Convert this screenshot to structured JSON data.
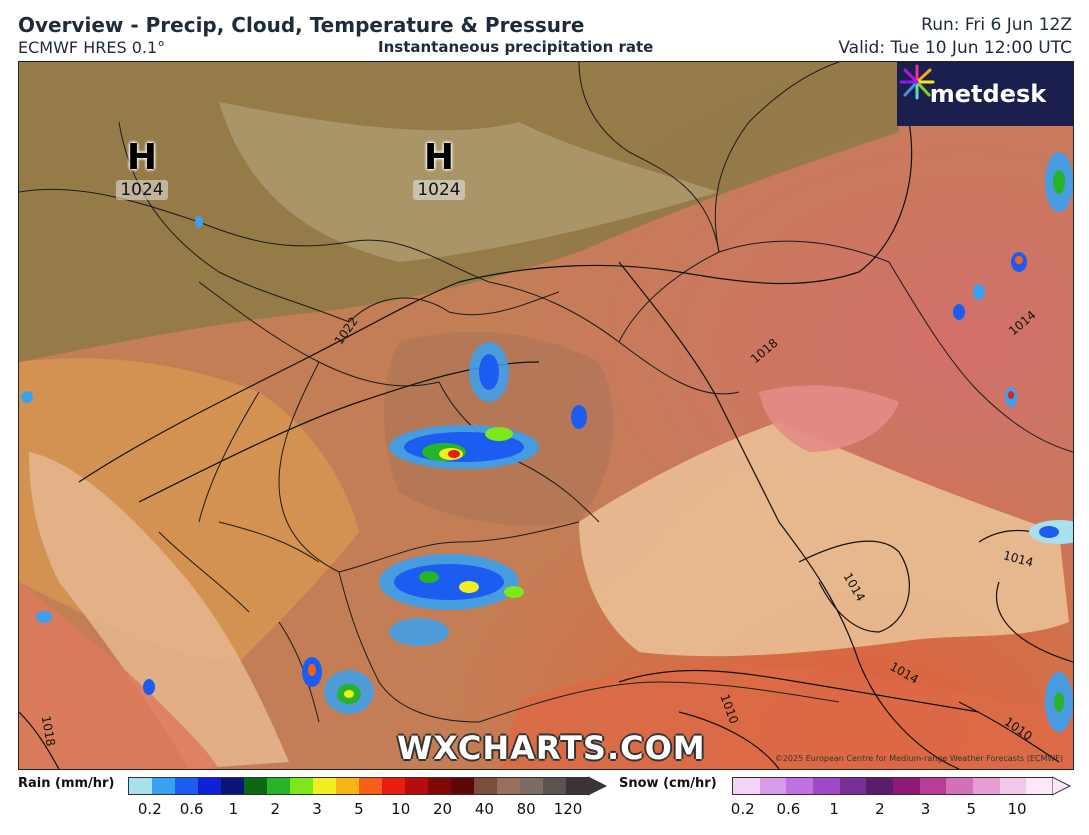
{
  "header": {
    "title": "Overview - Precip, Cloud, Temperature & Pressure",
    "model": "ECMWF HRES 0.1°",
    "subtitle": "Instantaneous precipitation rate",
    "run": "Run: Fri 6 Jun 12Z",
    "valid": "Valid: Tue 10 Jun 12:00 UTC"
  },
  "logo": {
    "text": "metdesk"
  },
  "pressure_centers": [
    {
      "type": "H",
      "value": "1024"
    },
    {
      "type": "H",
      "value": "1024"
    }
  ],
  "isobar_labels": [
    "1022",
    "1018",
    "1014",
    "1014",
    "1014",
    "1014",
    "1010",
    "1010",
    "1018"
  ],
  "watermark": "WXCHARTS.COM",
  "copyright": "©2025 European Centre for Medium-range Weather Forecasts (ECMWF)",
  "legend": {
    "rain": {
      "title": "Rain (mm/hr)",
      "ticks": [
        "0.2",
        "0.6",
        "1",
        "2",
        "3",
        "5",
        "10",
        "20",
        "40",
        "80",
        "120"
      ],
      "colors": [
        "#a8e0ee",
        "#3aa0f0",
        "#1c5cf0",
        "#1020d8",
        "#0c1478",
        "#0a6a14",
        "#28b428",
        "#7ce81c",
        "#f0f020",
        "#f8b418",
        "#f86018",
        "#e81c10",
        "#b80c0c",
        "#800808",
        "#5c0808",
        "#7c4c3c",
        "#987060",
        "#7c6c64",
        "#5c5250",
        "#3c3434"
      ]
    },
    "snow": {
      "title": "Snow (cm/hr)",
      "ticks": [
        "0.2",
        "0.6",
        "1",
        "2",
        "3",
        "5",
        "10"
      ],
      "colors": [
        "#f4d4f4",
        "#d89cec",
        "#c070e0",
        "#a048c8",
        "#783098",
        "#5c1c6c",
        "#901878",
        "#b83c98",
        "#d470b8",
        "#e89cd4",
        "#f4c8e8",
        "#fce8f8"
      ]
    }
  }
}
